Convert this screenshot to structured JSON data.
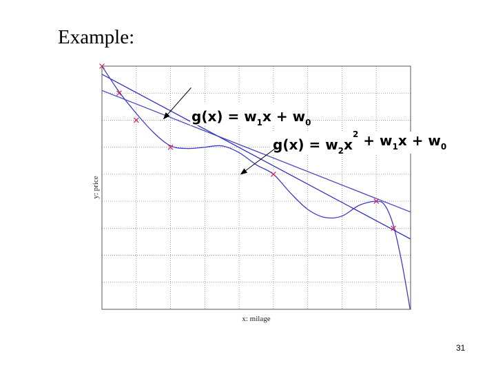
{
  "slide": {
    "title": "Example:",
    "page_number": "31"
  },
  "chart_data": {
    "type": "scatter",
    "xlabel": "x: milage",
    "ylabel": "y: price",
    "xlim": [
      0,
      9
    ],
    "ylim": [
      0,
      9
    ],
    "grid": true,
    "points": [
      {
        "x": 0.0,
        "y": 9.0
      },
      {
        "x": 0.5,
        "y": 8.0
      },
      {
        "x": 1.0,
        "y": 7.0
      },
      {
        "x": 2.0,
        "y": 6.0
      },
      {
        "x": 5.0,
        "y": 5.0
      },
      {
        "x": 8.0,
        "y": 4.0
      },
      {
        "x": 8.5,
        "y": 3.0
      }
    ],
    "series": [
      {
        "type": "line",
        "color": "#4848c8",
        "x": [
          0,
          9
        ],
        "y": [
          8.1,
          3.6
        ]
      },
      {
        "type": "line",
        "color": "#3030c0",
        "x": [
          0,
          9
        ],
        "y": [
          8.7,
          2.6
        ]
      },
      {
        "type": "curve",
        "color": "#3a3acc",
        "x": [
          0,
          0.5,
          1.0,
          1.5,
          2.0,
          2.5,
          3.0,
          3.5,
          4.0,
          4.5,
          5.0,
          5.5,
          6.0,
          6.5,
          7.0,
          7.5,
          8.0,
          8.25,
          8.5,
          8.75,
          9.0
        ],
        "y": [
          9.0,
          8.05,
          7.25,
          6.55,
          6.05,
          5.95,
          6.0,
          6.05,
          5.8,
          5.35,
          5.0,
          4.3,
          3.7,
          3.4,
          3.45,
          3.85,
          4.0,
          3.85,
          3.1,
          1.7,
          -0.1
        ]
      }
    ],
    "annotations": [
      {
        "text_parts": [
          "g(x)",
          " = ",
          "w",
          "1",
          "x + ",
          "w",
          "0"
        ],
        "arrow_from": [
          2.6,
          8.2
        ],
        "arrow_to": [
          1.8,
          7.05
        ]
      },
      {
        "text_parts": [
          "g(x)",
          " = ",
          "w",
          "2",
          "x",
          "2",
          " + ",
          "w",
          "1",
          "x + ",
          "w",
          "0"
        ],
        "arrow_from": [
          5.1,
          6.0
        ],
        "arrow_to": [
          4.05,
          5.0
        ]
      }
    ],
    "marker_color": "#d02060",
    "frame_color": "#555555",
    "grid_color": "#888888"
  }
}
